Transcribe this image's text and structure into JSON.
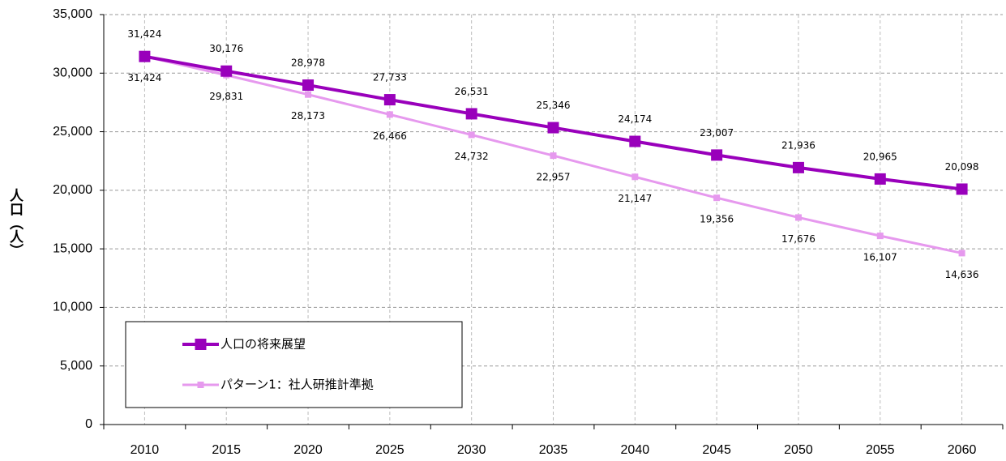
{
  "chart_data": {
    "type": "line",
    "y_label": "人口（人）",
    "categories": [
      "2010",
      "2015",
      "2020",
      "2025",
      "2030",
      "2035",
      "2040",
      "2045",
      "2050",
      "2055",
      "2060"
    ],
    "series": [
      {
        "name": "人口の将来展望",
        "color": "#9900bb",
        "values": [
          31424,
          30176,
          28978,
          27733,
          26531,
          25346,
          24174,
          23007,
          21936,
          20965,
          20098
        ],
        "value_labels": [
          "31,424",
          "30,176",
          "28,978",
          "27,733",
          "26,531",
          "25,346",
          "24,174",
          "23,007",
          "21,936",
          "20,965",
          "20,098"
        ]
      },
      {
        "name": "パターン1：社人研推計準拠",
        "color": "#e699ee",
        "values": [
          31424,
          29831,
          28173,
          26466,
          24732,
          22957,
          21147,
          19356,
          17676,
          16107,
          14636
        ],
        "value_labels": [
          "31,424",
          "29,831",
          "28,173",
          "26,466",
          "24,732",
          "22,957",
          "21,147",
          "19,356",
          "17,676",
          "16,107",
          "14,636"
        ]
      }
    ],
    "ylim": [
      0,
      35000
    ],
    "yticks": [
      0,
      {
        "value": 5000,
        "label": "5,000"
      },
      {
        "value": 10000,
        "label": "10,000"
      },
      {
        "value": 15000,
        "label": "15,000"
      },
      {
        "value": 20000,
        "label": "20,000"
      },
      {
        "value": 25000,
        "label": "25,000"
      },
      {
        "value": 30000,
        "label": "30,000"
      },
      {
        "value": 35000,
        "label": "35,000"
      }
    ],
    "grid": true
  }
}
